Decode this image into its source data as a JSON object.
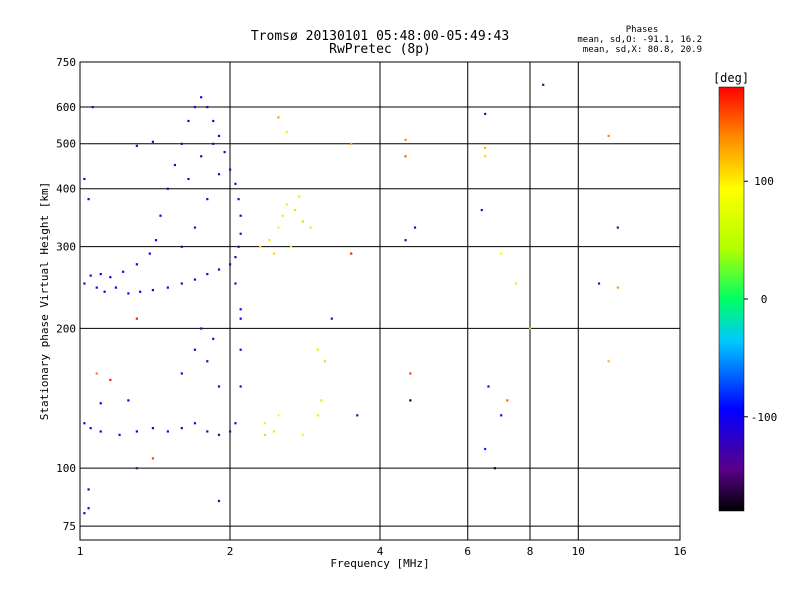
{
  "chart_data": {
    "type": "scatter",
    "title": "Tromsø 20130101 05:48:00-05:49:43",
    "subtitle": "RwPretec (8p)",
    "xlabel": "Frequency [MHz]",
    "ylabel": "Stationary phase Virtual Height [km]",
    "x_scale": "log",
    "y_scale": "log",
    "xlim": [
      1,
      16
    ],
    "ylim": [
      70,
      750
    ],
    "x_ticks": [
      1,
      2,
      4,
      6,
      8,
      10,
      16
    ],
    "y_ticks": [
      75,
      100,
      200,
      300,
      400,
      500,
      600,
      750
    ],
    "grid": true,
    "stats": {
      "heading": "Phases",
      "line_o": "mean, sd,O: -91.1, 16.2",
      "line_x": "mean, sd,X: 80.8, 20.9"
    },
    "colorbar": {
      "label": "[deg]",
      "ticks": [
        100,
        0,
        -100
      ],
      "range": [
        -180,
        180
      ]
    },
    "series": [
      {
        "points": [
          [
            1.02,
            250,
            -120
          ],
          [
            1.05,
            260,
            -110
          ],
          [
            1.08,
            245,
            -115
          ],
          [
            1.12,
            240,
            -105
          ],
          [
            1.18,
            245,
            -100
          ],
          [
            1.25,
            238,
            -110
          ],
          [
            1.32,
            240,
            -95
          ],
          [
            1.4,
            242,
            -100
          ],
          [
            1.5,
            245,
            -110
          ],
          [
            1.6,
            250,
            -105
          ],
          [
            1.7,
            255,
            -115
          ],
          [
            1.8,
            262,
            -110
          ],
          [
            1.9,
            268,
            -120
          ],
          [
            2.0,
            275,
            -115
          ],
          [
            2.05,
            285,
            -118
          ],
          [
            2.08,
            300,
            -120
          ],
          [
            2.1,
            320,
            -122
          ],
          [
            2.1,
            350,
            -125
          ],
          [
            2.08,
            380,
            -120
          ],
          [
            2.05,
            410,
            -118
          ],
          [
            2.0,
            440,
            -120
          ],
          [
            1.95,
            480,
            -122
          ],
          [
            1.9,
            520,
            -125
          ],
          [
            1.85,
            560,
            -120
          ],
          [
            1.8,
            600,
            -118
          ],
          [
            1.75,
            630,
            -125
          ],
          [
            1.7,
            600,
            -120
          ],
          [
            1.65,
            560,
            -115
          ],
          [
            1.6,
            500,
            -110
          ],
          [
            1.55,
            450,
            -118
          ],
          [
            1.5,
            400,
            -120
          ],
          [
            1.45,
            350,
            -112
          ],
          [
            1.42,
            310,
            -108
          ],
          [
            1.38,
            290,
            -100
          ],
          [
            1.3,
            275,
            -95
          ],
          [
            1.22,
            265,
            -90
          ],
          [
            1.15,
            258,
            -98
          ],
          [
            1.1,
            262,
            -92
          ],
          [
            1.3,
            495,
            -130
          ],
          [
            1.4,
            505,
            -125
          ],
          [
            1.02,
            420,
            -110
          ],
          [
            1.04,
            380,
            -120
          ],
          [
            1.06,
            600,
            -118
          ],
          [
            1.6,
            300,
            -110
          ],
          [
            1.7,
            330,
            -120
          ],
          [
            1.8,
            380,
            -118
          ],
          [
            1.9,
            430,
            -122
          ],
          [
            1.75,
            470,
            -120
          ],
          [
            1.85,
            500,
            -125
          ],
          [
            1.65,
            420,
            -115
          ],
          [
            2.05,
            250,
            -130
          ],
          [
            2.1,
            220,
            -125
          ],
          [
            1.02,
            125,
            -110
          ],
          [
            1.05,
            122,
            -100
          ],
          [
            1.1,
            120,
            -95
          ],
          [
            1.2,
            118,
            -90
          ],
          [
            1.3,
            120,
            -100
          ],
          [
            1.4,
            122,
            -105
          ],
          [
            1.5,
            120,
            -110
          ],
          [
            1.6,
            122,
            -115
          ],
          [
            1.7,
            125,
            -120
          ],
          [
            1.8,
            120,
            -118
          ],
          [
            1.9,
            118,
            -122
          ],
          [
            2.0,
            120,
            -125
          ],
          [
            2.05,
            125,
            -120
          ],
          [
            2.1,
            180,
            -118
          ],
          [
            2.1,
            150,
            -120
          ],
          [
            1.9,
            150,
            -118
          ],
          [
            1.8,
            170,
            -115
          ],
          [
            1.7,
            180,
            -110
          ],
          [
            1.6,
            160,
            -105
          ],
          [
            1.75,
            200,
            -112
          ],
          [
            1.85,
            190,
            -118
          ],
          [
            1.1,
            138,
            -95
          ],
          [
            1.25,
            140,
            -100
          ],
          [
            2.3,
            300,
            100
          ],
          [
            2.4,
            310,
            105
          ],
          [
            2.5,
            330,
            80
          ],
          [
            2.55,
            350,
            60
          ],
          [
            2.6,
            370,
            70
          ],
          [
            2.7,
            360,
            50
          ],
          [
            2.8,
            340,
            40
          ],
          [
            2.9,
            330,
            55
          ],
          [
            2.45,
            290,
            110
          ],
          [
            2.65,
            300,
            95
          ],
          [
            2.75,
            385,
            65
          ],
          [
            2.35,
            125,
            100
          ],
          [
            2.45,
            120,
            105
          ],
          [
            2.35,
            118,
            110
          ],
          [
            2.5,
            130,
            95
          ],
          [
            3.0,
            130,
            60
          ],
          [
            3.05,
            140,
            50
          ],
          [
            2.8,
            118,
            90
          ],
          [
            3.1,
            170,
            40
          ],
          [
            3.0,
            180,
            60
          ],
          [
            1.4,
            105,
            160
          ],
          [
            1.3,
            210,
            170
          ],
          [
            1.15,
            155,
            170
          ],
          [
            1.08,
            160,
            140
          ],
          [
            4.5,
            470,
            150
          ],
          [
            4.5,
            510,
            140
          ],
          [
            3.5,
            500,
            130
          ],
          [
            6.5,
            490,
            120
          ],
          [
            6.5,
            470,
            110
          ],
          [
            11.5,
            520,
            140
          ],
          [
            12.0,
            245,
            130
          ],
          [
            11.5,
            170,
            120
          ],
          [
            7.0,
            290,
            90
          ],
          [
            7.5,
            250,
            70
          ],
          [
            8.0,
            200,
            120
          ],
          [
            7.2,
            140,
            150
          ],
          [
            4.6,
            160,
            160
          ],
          [
            3.5,
            290,
            170
          ],
          [
            2.6,
            530,
            100
          ],
          [
            2.5,
            570,
            130
          ],
          [
            6.5,
            580,
            -140
          ],
          [
            4.5,
            310,
            -130
          ],
          [
            4.7,
            330,
            -125
          ],
          [
            6.4,
            360,
            -130
          ],
          [
            8.5,
            670,
            -145
          ],
          [
            4.6,
            140,
            -170
          ],
          [
            3.6,
            130,
            -130
          ],
          [
            6.8,
            100,
            -170
          ],
          [
            12.0,
            330,
            -140
          ],
          [
            11.0,
            250,
            -135
          ],
          [
            6.6,
            150,
            -110
          ],
          [
            7.0,
            130,
            -90
          ],
          [
            6.5,
            110,
            -80
          ],
          [
            2.1,
            210,
            -100
          ],
          [
            3.2,
            210,
            -130
          ],
          [
            1.9,
            85,
            -130
          ],
          [
            1.04,
            82,
            -120
          ],
          [
            1.04,
            90,
            -115
          ],
          [
            1.02,
            80,
            -125
          ],
          [
            1.3,
            100,
            -140
          ]
        ]
      }
    ]
  }
}
